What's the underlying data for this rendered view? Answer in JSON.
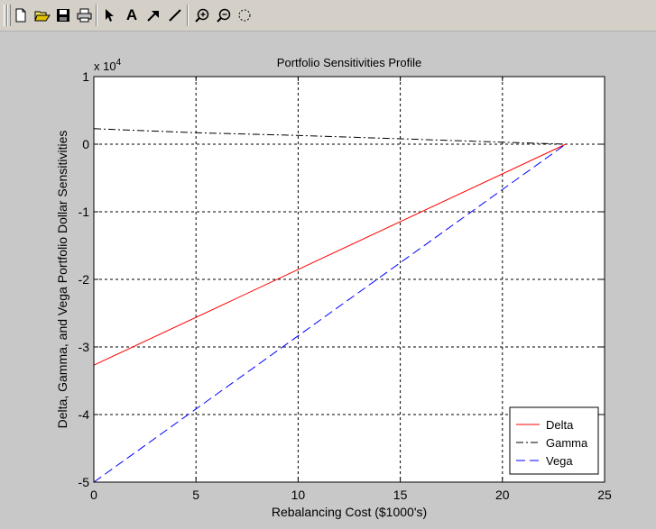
{
  "toolbar": {
    "buttons": [
      {
        "name": "new-file-icon"
      },
      {
        "name": "open-folder-icon"
      },
      {
        "name": "save-icon"
      },
      {
        "name": "print-icon"
      },
      {
        "name": "select-arrow-icon"
      },
      {
        "name": "insert-text-icon",
        "label": "A"
      },
      {
        "name": "insert-arrow-icon"
      },
      {
        "name": "insert-line-icon"
      },
      {
        "name": "zoom-in-icon"
      },
      {
        "name": "zoom-out-icon"
      },
      {
        "name": "rotate-icon"
      }
    ]
  },
  "chart_data": {
    "type": "line",
    "title": "Portfolio Sensitivities Profile",
    "xlabel": "Rebalancing Cost ($1000's)",
    "ylabel": "Delta, Gamma, and Vega Portfolio Dollar Sensitivities",
    "y_multiplier": "x 10",
    "y_multiplier_exponent": "4",
    "xlim": [
      0,
      25
    ],
    "ylim": [
      -5,
      1
    ],
    "x_ticks": [
      "0",
      "5",
      "10",
      "15",
      "20",
      "25"
    ],
    "y_ticks": [
      "1",
      "0",
      "-1",
      "-2",
      "-3",
      "-4",
      "-5"
    ],
    "grid": true,
    "legend_position": "bottom-right",
    "series": [
      {
        "name": "Delta",
        "color": "#ff0000",
        "line_style": "solid",
        "x": [
          0,
          23.1
        ],
        "y": [
          -3.27,
          0
        ]
      },
      {
        "name": "Gamma",
        "color": "#000000",
        "line_style": "dash-dot",
        "x": [
          0,
          5,
          10,
          15,
          20,
          23.1
        ],
        "y": [
          0.23,
          0.17,
          0.13,
          0.08,
          0.03,
          0
        ]
      },
      {
        "name": "Vega",
        "color": "#0000ff",
        "line_style": "dashed",
        "x": [
          0,
          23.1
        ],
        "y": [
          -5,
          0
        ]
      }
    ]
  }
}
